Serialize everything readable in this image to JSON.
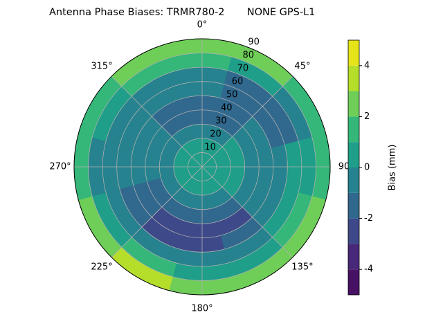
{
  "chart_data": {
    "type": "polar-contour",
    "title": "Antenna Phase Biases: TRMR780-2       NONE GPS-L1",
    "colorbar_label": "Bias (mm)",
    "rlim": [
      0,
      90
    ],
    "rticks": [
      10,
      20,
      30,
      40,
      50,
      60,
      70,
      80,
      90
    ],
    "thetaticks": [
      {
        "value": 0,
        "label": "0°"
      },
      {
        "value": 45,
        "label": "45°"
      },
      {
        "value": 90,
        "label": "90"
      },
      {
        "value": 135,
        "label": "135°"
      },
      {
        "value": 180,
        "label": "180°"
      },
      {
        "value": 225,
        "label": "225°"
      },
      {
        "value": 270,
        "label": "270°"
      },
      {
        "value": 315,
        "label": "315°"
      }
    ],
    "azimuth": [
      0,
      30,
      60,
      90,
      120,
      150,
      180,
      210,
      240,
      270,
      300,
      330
    ],
    "radius": [
      5,
      15,
      25,
      35,
      45,
      55,
      65,
      75,
      85
    ],
    "values": [
      [
        0.5,
        0.5,
        -0.5,
        -1.5,
        -1.5,
        -0.5,
        -0.5,
        1.5,
        2.5
      ],
      [
        0.5,
        0.5,
        -0.5,
        -1.5,
        -1.5,
        -1.5,
        -1.5,
        0.5,
        2.5
      ],
      [
        0.5,
        0.5,
        0.5,
        -0.5,
        -0.5,
        -1.5,
        -1.5,
        -0.5,
        1.5
      ],
      [
        0.5,
        0.5,
        0.5,
        -0.5,
        -0.5,
        -0.5,
        0.5,
        0.5,
        1.5
      ],
      [
        0.5,
        0.5,
        0.5,
        -0.5,
        -0.5,
        -0.5,
        0.5,
        1.5,
        2.5
      ],
      [
        0.5,
        0.5,
        -0.5,
        -1.5,
        -2.5,
        -1.5,
        -0.5,
        0.5,
        2.5
      ],
      [
        0.5,
        0.5,
        -0.5,
        -1.5,
        -2.5,
        -2.5,
        -0.5,
        0.5,
        2.5
      ],
      [
        0.5,
        0.5,
        -0.5,
        -1.5,
        -2.5,
        -2.5,
        -0.5,
        1.5,
        3.5
      ],
      [
        0.5,
        0.5,
        -0.5,
        -1.5,
        -1.5,
        -1.5,
        -0.5,
        0.5,
        2.5
      ],
      [
        0.5,
        0.5,
        -0.5,
        -0.5,
        -0.5,
        -0.5,
        -0.5,
        -0.5,
        1.5
      ],
      [
        0.5,
        0.5,
        -0.5,
        -0.5,
        -0.5,
        -0.5,
        -0.5,
        0.5,
        1.5
      ],
      [
        0.5,
        0.5,
        -0.5,
        -1.5,
        -1.5,
        -0.5,
        -0.5,
        1.5,
        2.5
      ]
    ],
    "levels": [
      -5,
      -4,
      -3,
      -2,
      -1,
      0,
      1,
      2,
      3,
      4,
      5
    ],
    "colors": [
      "#471164",
      "#482878",
      "#3e4989",
      "#31688e",
      "#26828e",
      "#1f9e89",
      "#35b779",
      "#6ece58",
      "#b5de2b",
      "#e5e419"
    ],
    "cticks": [
      -4,
      -2,
      0,
      2,
      4
    ],
    "grid": true
  }
}
